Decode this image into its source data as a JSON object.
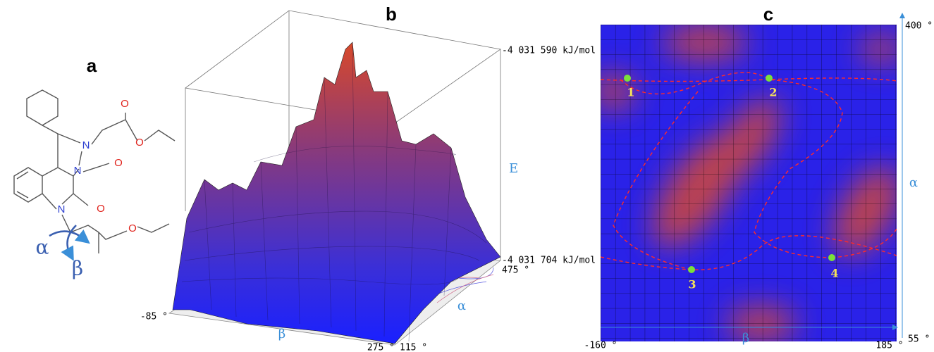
{
  "panels": {
    "a": {
      "label": "a",
      "atoms": [
        "N",
        "N",
        "N",
        "O",
        "O",
        "O",
        "O",
        "O"
      ],
      "alpha": "α",
      "beta": "β"
    },
    "b": {
      "label": "b",
      "energy_top": "-4 031 590 kJ/mol",
      "energy_bottom": "-4 031 704 kJ/mol",
      "energy_axis": "E",
      "beta_start": "-85 °",
      "beta_end": "275 °",
      "alpha_start": "115 °",
      "alpha_end": "475 °",
      "alpha": "α",
      "beta": "β"
    },
    "c": {
      "label": "c",
      "beta_start": "-160 °",
      "beta_end": "185 °",
      "alpha_top": "400 °",
      "alpha_bottom": "55 °",
      "alpha": "α",
      "beta": "β",
      "points": [
        "1",
        "2",
        "3",
        "4"
      ]
    }
  }
}
